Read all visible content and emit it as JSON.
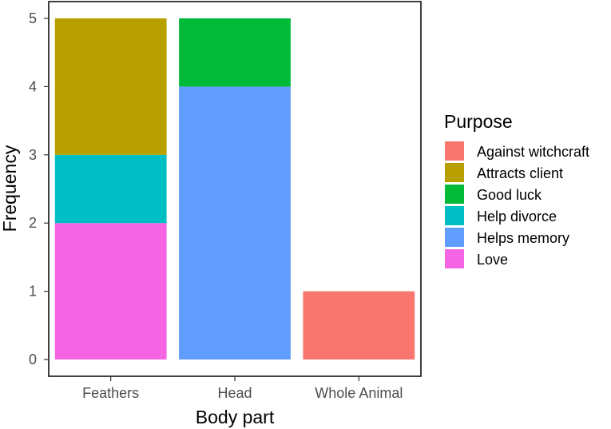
{
  "chart_data": {
    "type": "bar",
    "stacked": true,
    "title": "",
    "xlabel": "Body part",
    "ylabel": "Frequency",
    "categories": [
      "Feathers",
      "Head",
      "Whole Animal"
    ],
    "ylim": [
      0,
      5
    ],
    "yticks": [
      "0",
      "1",
      "2",
      "3",
      "4",
      "5"
    ],
    "grid": false,
    "legend_placement": "right",
    "legend_title": "Purpose",
    "series": [
      {
        "name": "Against witchcraft",
        "color": "#F8766D",
        "values": [
          0,
          0,
          1
        ]
      },
      {
        "name": "Attracts client",
        "color": "#B79F00",
        "values": [
          2,
          0,
          0
        ]
      },
      {
        "name": "Good luck",
        "color": "#00BA38",
        "values": [
          0,
          1,
          0
        ]
      },
      {
        "name": "Help divorce",
        "color": "#00BFC4",
        "values": [
          1,
          0,
          0
        ]
      },
      {
        "name": "Helps memory",
        "color": "#619CFF",
        "values": [
          0,
          4,
          0
        ]
      },
      {
        "name": "Love",
        "color": "#F564E3",
        "values": [
          2,
          0,
          0
        ]
      }
    ]
  }
}
